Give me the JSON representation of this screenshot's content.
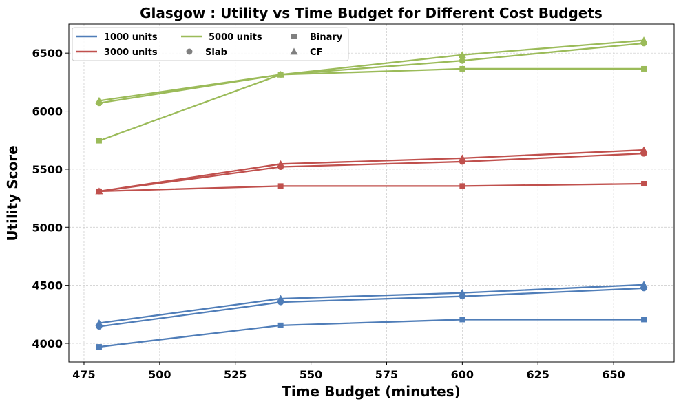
{
  "chart_data": {
    "type": "line",
    "title": "Glasgow : Utility vs Time Budget for Different Cost Budgets",
    "xlabel": "Time Budget (minutes)",
    "ylabel": "Utility Score",
    "xlim": [
      470,
      670
    ],
    "ylim": [
      3840,
      6750
    ],
    "xticks": [
      475,
      500,
      525,
      550,
      575,
      600,
      625,
      650
    ],
    "yticks": [
      4000,
      4500,
      5000,
      5500,
      6000,
      6500
    ],
    "grid": true,
    "legend_position": "top-left",
    "x": [
      480,
      540,
      600,
      660
    ],
    "series": [
      {
        "budget": "1000 units",
        "method": "Binary",
        "color": "#4f7db8",
        "marker": "square",
        "values": [
          3970,
          4155,
          4205,
          4205
        ]
      },
      {
        "budget": "1000 units",
        "method": "Slab",
        "color": "#4f7db8",
        "marker": "circle",
        "values": [
          4145,
          4355,
          4405,
          4475
        ]
      },
      {
        "budget": "1000 units",
        "method": "CF",
        "color": "#4f7db8",
        "marker": "triangle",
        "values": [
          4175,
          4385,
          4435,
          4505
        ]
      },
      {
        "budget": "3000 units",
        "method": "Binary",
        "color": "#c0504d",
        "marker": "square",
        "values": [
          5310,
          5355,
          5355,
          5375
        ]
      },
      {
        "budget": "3000 units",
        "method": "Slab",
        "color": "#c0504d",
        "marker": "circle",
        "values": [
          5310,
          5520,
          5565,
          5635
        ]
      },
      {
        "budget": "3000 units",
        "method": "CF",
        "color": "#c0504d",
        "marker": "triangle",
        "values": [
          5310,
          5545,
          5595,
          5665
        ]
      },
      {
        "budget": "5000 units",
        "method": "Binary",
        "color": "#9bbb59",
        "marker": "square",
        "values": [
          5745,
          6315,
          6365,
          6365
        ]
      },
      {
        "budget": "5000 units",
        "method": "Slab",
        "color": "#9bbb59",
        "marker": "circle",
        "values": [
          6070,
          6315,
          6435,
          6585
        ]
      },
      {
        "budget": "5000 units",
        "method": "CF",
        "color": "#9bbb59",
        "marker": "triangle",
        "values": [
          6090,
          6315,
          6485,
          6610
        ]
      }
    ],
    "legend": {
      "budgets": [
        {
          "label": "1000 units",
          "color": "#4f7db8"
        },
        {
          "label": "3000 units",
          "color": "#c0504d"
        },
        {
          "label": "5000 units",
          "color": "#9bbb59"
        }
      ],
      "methods": [
        {
          "label": "Binary",
          "marker": "square",
          "color": "#808080"
        },
        {
          "label": "Slab",
          "marker": "circle",
          "color": "#808080"
        },
        {
          "label": "CF",
          "marker": "triangle",
          "color": "#808080"
        }
      ]
    }
  }
}
